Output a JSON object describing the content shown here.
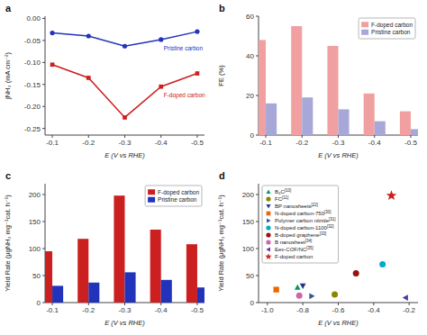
{
  "chart_data": [
    {
      "type": "line",
      "title": "a",
      "x_label": "E (V vs RHE)",
      "y_label": "jNH₃ (mA cm⁻²)",
      "x": [
        -0.1,
        -0.2,
        -0.3,
        -0.4,
        -0.5
      ],
      "series": [
        {
          "name": "F-doped carbon",
          "color": "#cc2020",
          "marker": "square",
          "values": [
            -0.105,
            -0.135,
            -0.225,
            -0.155,
            -0.125
          ]
        },
        {
          "name": "Pristine carbon",
          "color": "#2233bb",
          "marker": "circle",
          "values": [
            -0.033,
            -0.04,
            -0.063,
            -0.048,
            -0.03
          ]
        }
      ],
      "xlim": [
        -0.08,
        -0.52
      ],
      "xticks": [
        -0.1,
        -0.2,
        -0.3,
        -0.4,
        -0.5
      ],
      "ylim": [
        -0.265,
        0.005
      ],
      "yticks": [
        -0.25,
        {
          "value": -0.2,
          "label": "-0.20"
        },
        -0.15,
        {
          "value": -0.1,
          "label": "-0.10"
        },
        -0.05,
        {
          "value": 0,
          "label": "0.00"
        }
      ],
      "grid": false
    },
    {
      "type": "bar",
      "title": "b",
      "x_label": "E (V vs RHE)",
      "y_label": "FE (%)",
      "x": [
        -0.1,
        -0.2,
        -0.3,
        -0.4,
        -0.5
      ],
      "series": [
        {
          "name": "F-doped carbon",
          "color": "#f0a0a0",
          "values": [
            48,
            55,
            45,
            21,
            12
          ]
        },
        {
          "name": "Pristine carbon",
          "color": "#a8a8d8",
          "values": [
            16,
            19,
            13,
            7,
            3
          ]
        }
      ],
      "xlim": [
        -0.08,
        -0.52
      ],
      "xticks": [
        -0.1,
        -0.2,
        -0.3,
        -0.4,
        -0.5
      ],
      "ylim": [
        0,
        60
      ],
      "yticks": [
        0,
        20,
        40,
        60
      ],
      "legend": "upper-right",
      "grid": false
    },
    {
      "type": "bar",
      "title": "c",
      "x_label": "E (V vs RHE)",
      "y_label": "Yield Rate (μgNH₃ mg⁻¹cat. h⁻¹)",
      "x": [
        -0.1,
        -0.2,
        -0.3,
        -0.4,
        -0.5
      ],
      "series": [
        {
          "name": "F-doped carbon",
          "color": "#cc2020",
          "values": [
            95,
            118,
            198,
            135,
            108
          ]
        },
        {
          "name": "Pristine carbon",
          "color": "#2233bb",
          "values": [
            31,
            37,
            56,
            42,
            28
          ]
        }
      ],
      "xlim": [
        -0.08,
        -0.52
      ],
      "xticks": [
        -0.1,
        -0.2,
        -0.3,
        -0.4,
        -0.5
      ],
      "ylim": [
        0,
        220
      ],
      "yticks": [
        0,
        50,
        100,
        150,
        200
      ],
      "legend": "upper-right",
      "grid": false
    },
    {
      "type": "scatter",
      "title": "d",
      "x_label": "E (V vs RHE)",
      "y_label": "Yield Rate (μgNH₃ mg⁻¹cat. h⁻¹)",
      "series": [
        {
          "name": "B₄C[10]",
          "color": "#009966",
          "marker": "triangle-up",
          "x": [
            -0.83
          ],
          "values": [
            28.0
          ]
        },
        {
          "name": "FC[11]",
          "color": "#888800",
          "marker": "circle",
          "x": [
            -0.62
          ],
          "values": [
            15.0
          ]
        },
        {
          "name": "BP nanosheets[22]",
          "color": "#223388",
          "marker": "triangle-down",
          "x": [
            -0.8
          ],
          "values": [
            31.0
          ]
        },
        {
          "name": "N-doped carbon-750[30]",
          "color": "#ee6600",
          "marker": "square",
          "x": [
            -0.95
          ],
          "values": [
            24.0
          ]
        },
        {
          "name": "Polymer carbon nitride[31]",
          "color": "#335599",
          "marker": "triangle-right",
          "x": [
            -0.75
          ],
          "values": [
            12.0
          ]
        },
        {
          "name": "N-doped carbon-1100[32]",
          "color": "#00aacc",
          "marker": "circle",
          "x": [
            -0.35
          ],
          "values": [
            71.0
          ]
        },
        {
          "name": "B-doped graphene[33]",
          "color": "#991111",
          "marker": "circle",
          "x": [
            -0.5
          ],
          "values": [
            54.0
          ]
        },
        {
          "name": "B nanosheet[34]",
          "color": "#cc66aa",
          "marker": "circle",
          "x": [
            -0.82
          ],
          "values": [
            13.0
          ]
        },
        {
          "name": "Eex-COF/NC[35]",
          "color": "#5533aa",
          "marker": "triangle-left",
          "x": [
            -0.22
          ],
          "values": [
            9.0
          ]
        },
        {
          "name": "F-doped carbon",
          "color": "#cc2020",
          "marker": "star",
          "x": [
            -0.3
          ],
          "values": [
            198.0
          ]
        }
      ],
      "xlim": [
        -1.05,
        -0.15
      ],
      "xticks": [
        {
          "value": -1,
          "label": "-1.0"
        },
        -0.8,
        -0.6,
        -0.4,
        -0.2
      ],
      "ylim": [
        0,
        220
      ],
      "yticks": [
        0,
        50,
        100,
        150,
        200
      ],
      "legend": "upper-left",
      "grid": false
    }
  ]
}
